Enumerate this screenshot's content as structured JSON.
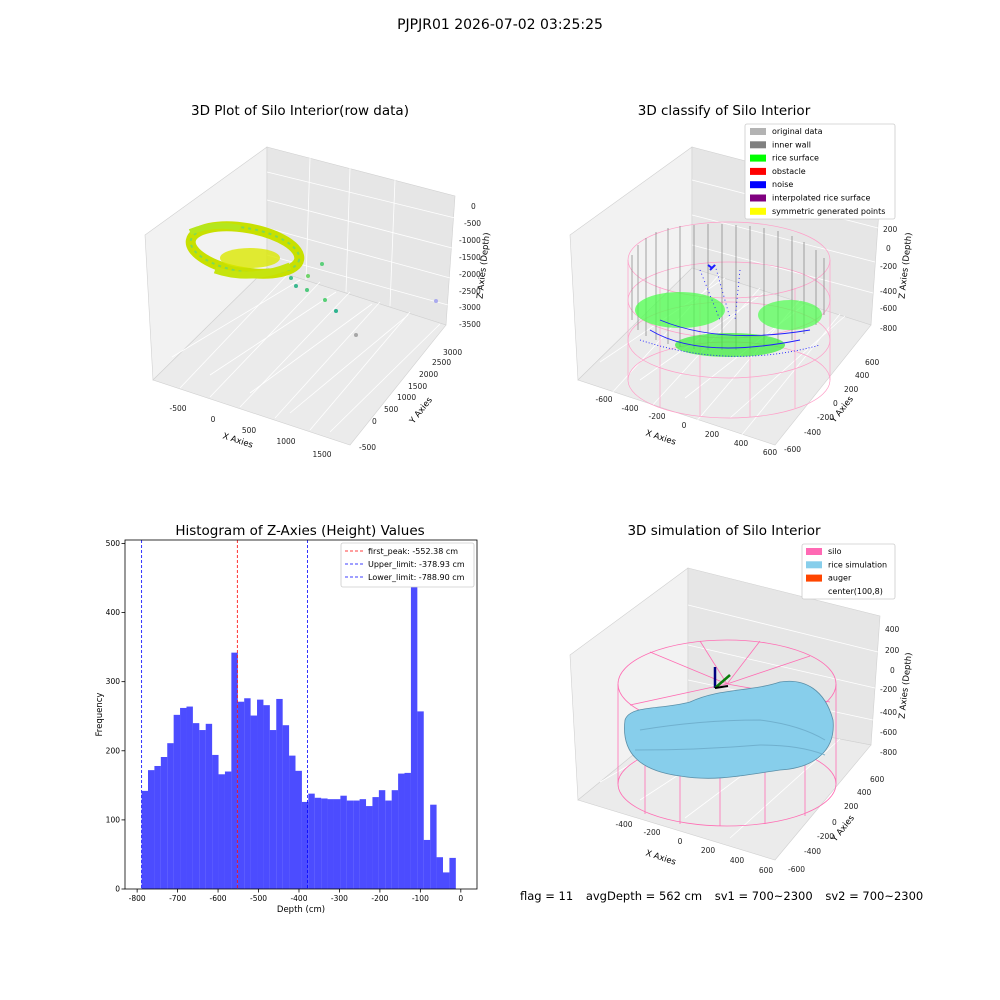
{
  "suptitle": "PJPJR01 2026-07-02 03:25:25",
  "panels": {
    "raw": {
      "title": "3D Plot of Silo Interior(row data)",
      "xlabel": "X Axies",
      "ylabel": "Y Axies",
      "zlabel": "Z Axies (Depth)",
      "xticks": [
        "-500",
        "0",
        "500",
        "1000",
        "1500"
      ],
      "yticks": [
        "-500",
        "0",
        "500",
        "1000",
        "1500",
        "2000",
        "2500",
        "3000"
      ],
      "zticks": [
        "0",
        "-500",
        "-1000",
        "-1500",
        "-2000",
        "-2500",
        "-3000",
        "-3500"
      ]
    },
    "classify": {
      "title": "3D classify of Silo Interior",
      "xlabel": "X Axies",
      "ylabel": "Y Axies",
      "zlabel": "Z Axies (Depth)",
      "xticks": [
        "-600",
        "-400",
        "-200",
        "0",
        "200",
        "400",
        "600"
      ],
      "yticks": [
        "-600",
        "-400",
        "-200",
        "0",
        "200",
        "400",
        "600"
      ],
      "zticks": [
        "200",
        "0",
        "-200",
        "-400",
        "-600",
        "-800"
      ],
      "legend": [
        {
          "label": "original data",
          "color": "#b3b3b3"
        },
        {
          "label": "inner wall",
          "color": "#808080"
        },
        {
          "label": "rice surface",
          "color": "#00ff00"
        },
        {
          "label": "obstacle",
          "color": "#ff0000"
        },
        {
          "label": "noise",
          "color": "#0000ff"
        },
        {
          "label": "interpolated rice surface",
          "color": "#800080"
        },
        {
          "label": "symmetric generated points",
          "color": "#ffff00"
        }
      ]
    },
    "simulation": {
      "title": "3D simulation of Silo Interior",
      "xlabel": "X Axies",
      "ylabel": "Y Axies",
      "zlabel": "Z Axies (Depth)",
      "xticks": [
        "-400",
        "-200",
        "0",
        "200",
        "400",
        "600"
      ],
      "yticks": [
        "-600",
        "-400",
        "-200",
        "0",
        "200",
        "400",
        "600"
      ],
      "zticks": [
        "400",
        "200",
        "0",
        "-200",
        "-400",
        "-600",
        "-800"
      ],
      "legend": [
        {
          "label": "silo",
          "color": "#ff69b4"
        },
        {
          "label": "rice simulation",
          "color": "#87ceeb"
        },
        {
          "label": "auger",
          "color": "#ff4500"
        },
        {
          "label": "center(100,8)",
          "color": ""
        }
      ]
    }
  },
  "chart_data": {
    "type": "bar",
    "title": "Histogram of Z-Axies (Height) Values",
    "xlabel": "Depth (cm)",
    "ylabel": "Frequency",
    "xlim": [
      -830,
      40
    ],
    "ylim": [
      0,
      505
    ],
    "xticks": [
      -800,
      -700,
      -600,
      -500,
      -400,
      -300,
      -200,
      -100,
      0
    ],
    "yticks": [
      0,
      100,
      200,
      300,
      400,
      500
    ],
    "bin_start": -789,
    "bin_width": 15.85,
    "values": [
      142,
      172,
      178,
      191,
      211,
      252,
      262,
      264,
      240,
      230,
      239,
      194,
      166,
      170,
      342,
      271,
      276,
      251,
      274,
      266,
      230,
      275,
      237,
      193,
      171,
      126,
      138,
      132,
      131,
      130,
      130,
      135,
      128,
      128,
      130,
      120,
      133,
      143,
      128,
      143,
      167,
      168,
      455,
      257,
      71,
      122,
      46,
      24,
      45
    ],
    "bar_color": "#0000ff",
    "vlines": [
      {
        "label": "first_peak: -552.38 cm",
        "x": -552.38,
        "color": "#ff0000"
      },
      {
        "label": "Upper_limit: -378.93 cm",
        "x": -378.93,
        "color": "#0000ff"
      },
      {
        "label": "Lower_limit: -788.90 cm",
        "x": -788.9,
        "color": "#0000ff"
      }
    ],
    "legend_position": "top-right"
  },
  "footer": {
    "flag": "flag = 11",
    "avg": "avgDepth = 562 cm",
    "sv1": "sv1 = 700~2300",
    "sv2": "sv2 = 700~2300"
  }
}
